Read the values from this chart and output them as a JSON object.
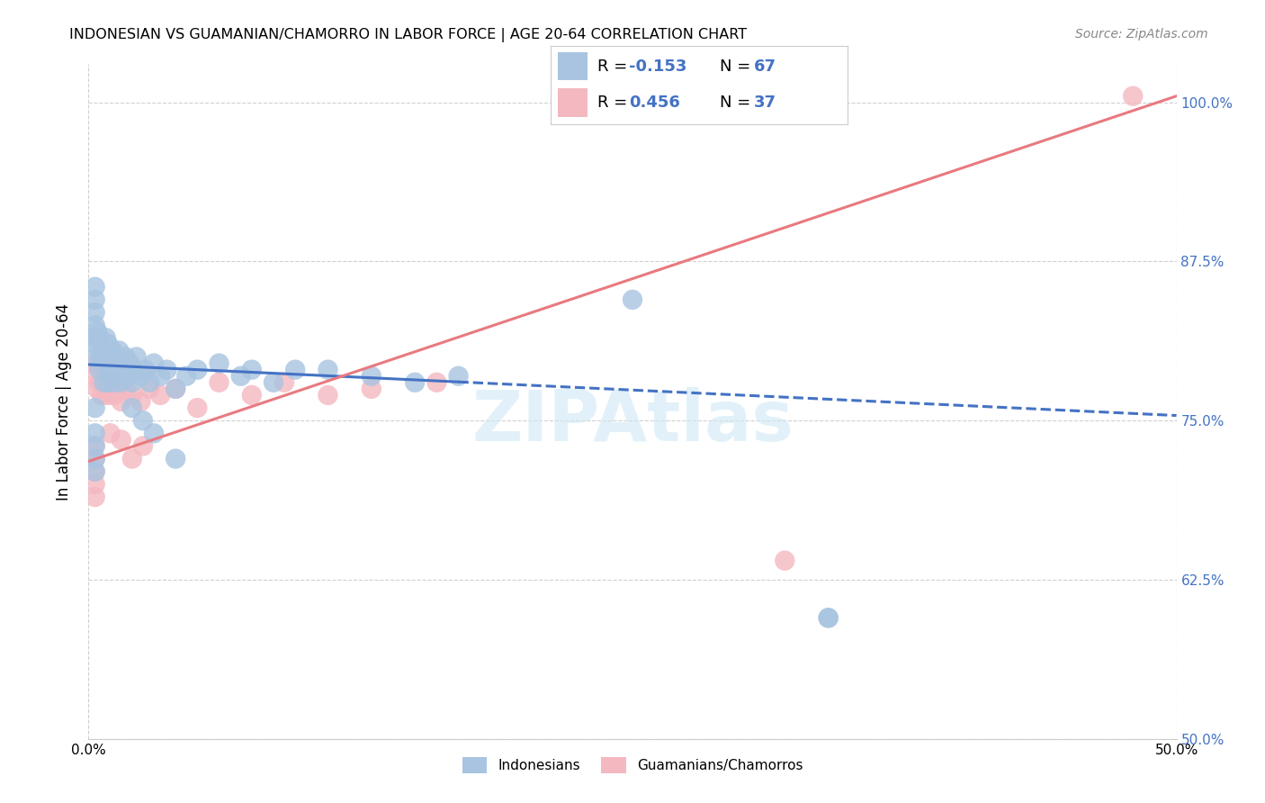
{
  "title": "INDONESIAN VS GUAMANIAN/CHAMORRO IN LABOR FORCE | AGE 20-64 CORRELATION CHART",
  "source": "Source: ZipAtlas.com",
  "ylabel": "In Labor Force | Age 20-64",
  "xlim": [
    0.0,
    0.5
  ],
  "ylim": [
    0.5,
    1.03
  ],
  "ytick_labels": [
    "50.0%",
    "62.5%",
    "75.0%",
    "87.5%",
    "100.0%"
  ],
  "ytick_values": [
    0.5,
    0.625,
    0.75,
    0.875,
    1.0
  ],
  "indonesian_color": "#a8c4e0",
  "guamanian_color": "#f4b8c1",
  "trendline_indonesian_color": "#4472c4",
  "trendline_guamanian_color": "#e87a80",
  "background_color": "#ffffff",
  "grid_color": "#d0d0d0",
  "indonesian_x": [
    0.003,
    0.003,
    0.004,
    0.005,
    0.005,
    0.006,
    0.007,
    0.007,
    0.008,
    0.008,
    0.009,
    0.009,
    0.009,
    0.01,
    0.01,
    0.011,
    0.011,
    0.012,
    0.012,
    0.013,
    0.013,
    0.014,
    0.014,
    0.015,
    0.015,
    0.016,
    0.017,
    0.018,
    0.019,
    0.02,
    0.021,
    0.022,
    0.024,
    0.026,
    0.028,
    0.03,
    0.033,
    0.036,
    0.04,
    0.045,
    0.05,
    0.06,
    0.07,
    0.075,
    0.085,
    0.095,
    0.11,
    0.13,
    0.15,
    0.17,
    0.003,
    0.003,
    0.003,
    0.003,
    0.003,
    0.003,
    0.003,
    0.003,
    0.003,
    0.003,
    0.02,
    0.025,
    0.03,
    0.04,
    0.25,
    0.34,
    0.34
  ],
  "indonesian_y": [
    0.8,
    0.81,
    0.82,
    0.79,
    0.815,
    0.8,
    0.78,
    0.805,
    0.795,
    0.815,
    0.78,
    0.795,
    0.81,
    0.785,
    0.8,
    0.79,
    0.805,
    0.78,
    0.795,
    0.785,
    0.8,
    0.79,
    0.805,
    0.78,
    0.795,
    0.79,
    0.8,
    0.785,
    0.795,
    0.78,
    0.79,
    0.8,
    0.785,
    0.79,
    0.78,
    0.795,
    0.785,
    0.79,
    0.775,
    0.785,
    0.79,
    0.795,
    0.785,
    0.79,
    0.78,
    0.79,
    0.79,
    0.785,
    0.78,
    0.785,
    0.855,
    0.845,
    0.835,
    0.825,
    0.815,
    0.76,
    0.74,
    0.73,
    0.72,
    0.71,
    0.76,
    0.75,
    0.74,
    0.72,
    0.845,
    0.595,
    0.595
  ],
  "guamanian_x": [
    0.003,
    0.003,
    0.004,
    0.005,
    0.006,
    0.007,
    0.008,
    0.009,
    0.01,
    0.011,
    0.012,
    0.013,
    0.015,
    0.017,
    0.02,
    0.024,
    0.028,
    0.033,
    0.04,
    0.05,
    0.06,
    0.075,
    0.09,
    0.11,
    0.13,
    0.16,
    0.003,
    0.003,
    0.003,
    0.003,
    0.003,
    0.01,
    0.015,
    0.02,
    0.025,
    0.32,
    0.48
  ],
  "guamanian_y": [
    0.785,
    0.795,
    0.775,
    0.78,
    0.77,
    0.78,
    0.775,
    0.77,
    0.775,
    0.78,
    0.77,
    0.775,
    0.765,
    0.775,
    0.77,
    0.765,
    0.775,
    0.77,
    0.775,
    0.76,
    0.78,
    0.77,
    0.78,
    0.77,
    0.775,
    0.78,
    0.73,
    0.72,
    0.71,
    0.7,
    0.69,
    0.74,
    0.735,
    0.72,
    0.73,
    0.64,
    1.005
  ],
  "trendline_indo_x0": 0.0,
  "trendline_indo_x1": 0.5,
  "trendline_indo_y0": 0.794,
  "trendline_indo_y1": 0.754,
  "trendline_indo_solid_x1": 0.17,
  "trendline_guam_x0": 0.0,
  "trendline_guam_x1": 0.5,
  "trendline_guam_y0": 0.718,
  "trendline_guam_y1": 1.005
}
